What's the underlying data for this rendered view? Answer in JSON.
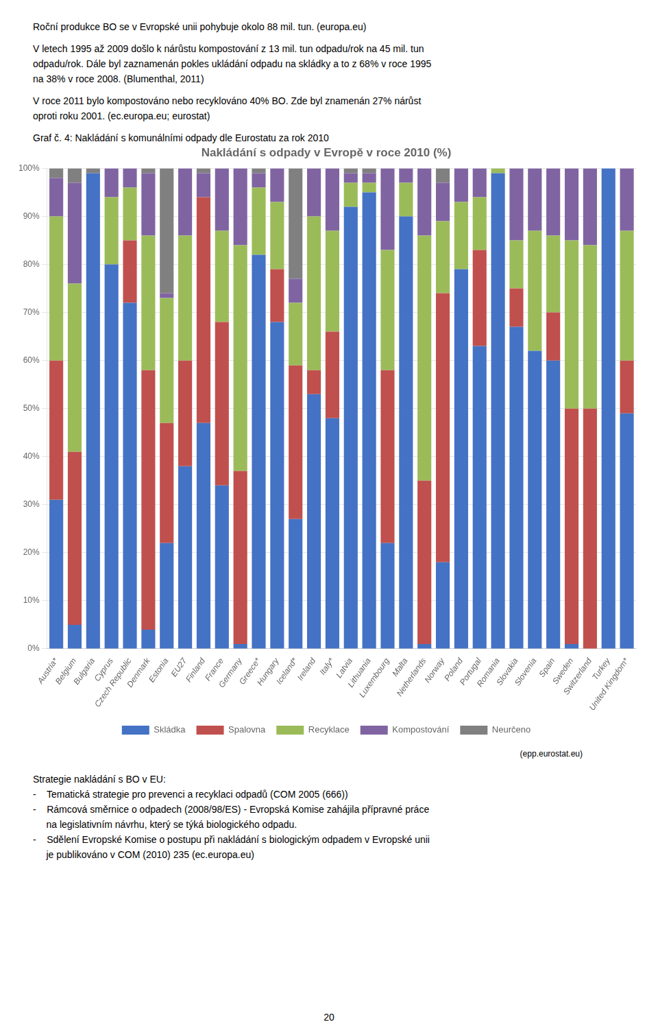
{
  "chart_data": {
    "type": "bar",
    "title": "Nakládání s odpady v Evropě v roce 2010 (%)",
    "categories": [
      "Austria*",
      "Belgium",
      "Bulgaria",
      "Cyprus",
      "Czech Republic",
      "Denmark",
      "Estonia",
      "EU27",
      "Finland",
      "France",
      "Germany",
      "Greece*",
      "Hungary",
      "Iceland*",
      "Ireland",
      "Italy*",
      "Latvia",
      "Lithuania",
      "Luxembourg",
      "Malta",
      "Netherlands",
      "Norway",
      "Poland",
      "Portugal",
      "Romania",
      "Slovakia",
      "Slovenia",
      "Spain",
      "Sweden",
      "Switzerland",
      "Turkey",
      "United Kingdom*"
    ],
    "series": [
      {
        "name": "Skládka",
        "color": "#4472C4",
        "values": [
          31,
          5,
          99,
          80,
          72,
          4,
          22,
          38,
          47,
          34,
          1,
          82,
          68,
          27,
          53,
          48,
          92,
          95,
          22,
          90,
          1,
          18,
          79,
          63,
          99,
          67,
          62,
          60,
          1,
          0,
          100,
          49
        ]
      },
      {
        "name": "Spalovna",
        "color": "#C0504D",
        "values": [
          29,
          36,
          0,
          0,
          13,
          54,
          25,
          22,
          47,
          34,
          36,
          0,
          11,
          32,
          5,
          18,
          0,
          0,
          36,
          0,
          34,
          56,
          0,
          20,
          0,
          8,
          0,
          10,
          49,
          50,
          0,
          11
        ]
      },
      {
        "name": "Recyklace",
        "color": "#9BBB59",
        "values": [
          30,
          35,
          0,
          14,
          11,
          28,
          26,
          26,
          0,
          19,
          47,
          14,
          14,
          13,
          32,
          21,
          5,
          2,
          25,
          7,
          51,
          15,
          14,
          11,
          1,
          10,
          25,
          16,
          35,
          34,
          0,
          27
        ]
      },
      {
        "name": "Kompostování",
        "color": "#8064A2",
        "values": [
          8,
          21,
          0,
          6,
          4,
          13,
          1,
          14,
          5,
          13,
          16,
          3,
          7,
          5,
          10,
          13,
          2,
          2,
          17,
          3,
          14,
          8,
          7,
          6,
          0,
          15,
          13,
          14,
          15,
          16,
          0,
          13
        ]
      },
      {
        "name": "Neurčeno",
        "color": "#808080",
        "values": [
          2,
          3,
          1,
          0,
          0,
          1,
          26,
          0,
          1,
          0,
          0,
          1,
          0,
          23,
          0,
          0,
          1,
          1,
          0,
          0,
          0,
          3,
          0,
          0,
          0,
          0,
          0,
          0,
          0,
          0,
          0,
          0
        ]
      }
    ],
    "stacked": true,
    "ylim": [
      0,
      100
    ],
    "yticks": [
      {
        "value": 0,
        "label": "0%"
      },
      {
        "value": 10,
        "label": "10%"
      },
      {
        "value": 20,
        "label": "20%"
      },
      {
        "value": 30,
        "label": "30%"
      },
      {
        "value": 40,
        "label": "40%"
      },
      {
        "value": 50,
        "label": "50%"
      },
      {
        "value": 60,
        "label": "60%"
      },
      {
        "value": 70,
        "label": "70%"
      },
      {
        "value": 80,
        "label": "80%"
      },
      {
        "value": 90,
        "label": "90%"
      },
      {
        "value": 100,
        "label": "100%"
      }
    ],
    "grid": true,
    "legend": "bottom",
    "annotations": [
      "Roční produkce BO se v Evropské unii pohybuje okolo 88 mil. tun. (europa.eu)",
      "V letech 1995 až 2009 došlo k nárůstu kompostování z 13 mil. tun odpadu/rok na 45 mil. tun",
      "odpadu/rok. Dále byl zaznamenán pokles ukládání odpadu na skládky a to z 68% v roce 1995",
      "na 38% v roce 2008. (Blumenthal, 2011)",
      "V roce 2011 bylo kompostováno nebo recyklováno 40% BO. Zde byl znamenán 27% nárůst",
      "oproti roku 2001. (ec.europa.eu; eurostat)",
      "Graf č. 4: Nakládání s komunálními odpady dle Eurostatu za rok 2010",
      "(epp.eurostat.eu)",
      "Strategie nakládání s BO v EU:",
      "-    Tematická strategie pro prevenci a recyklaci odpadů (COM 2005 (666))",
      "-    Rámcová směrnice o odpadech (2008/98/ES) - Evropská Komise zahájila přípravné práce",
      "     na legislativním návrhu, který se týká biologického odpadu.",
      "-    Sdělení Evropské Komise o postupu při nakládání s biologickým odpadem v Evropské unii",
      "     je publikováno v COM (2010) 235 (ec.europa.eu)",
      "20"
    ]
  }
}
